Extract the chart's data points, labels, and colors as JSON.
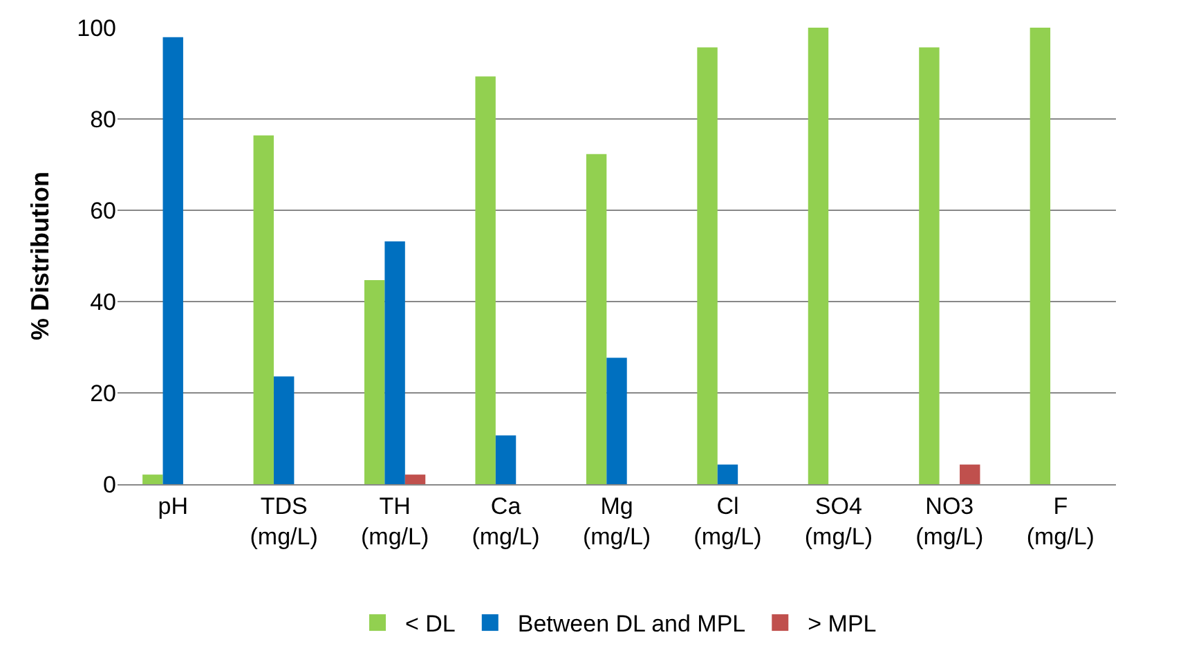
{
  "chart_data": {
    "type": "bar",
    "ylabel": "% Distribution",
    "categories": [
      "pH",
      "TDS\n(mg/L)",
      "TH\n(mg/L)",
      "Ca\n(mg/L)",
      "Mg\n(mg/L)",
      "Cl\n(mg/L)",
      "SO4\n(mg/L)",
      "NO3\n(mg/L)",
      "F\n(mg/L)"
    ],
    "series": [
      {
        "name": "< DL",
        "color": "#92d050",
        "values": [
          2.1,
          76.4,
          44.7,
          89.3,
          72.3,
          95.7,
          100,
          95.7,
          100
        ]
      },
      {
        "name": "Between DL and MPL",
        "color": "#0070c0",
        "values": [
          97.9,
          23.6,
          53.2,
          10.7,
          27.7,
          4.3,
          0,
          0,
          0
        ]
      },
      {
        "name": "> MPL",
        "color": "#c0504d",
        "values": [
          0,
          0,
          2.1,
          0,
          0,
          0,
          0,
          4.3,
          0
        ]
      }
    ],
    "ylim": [
      0,
      100
    ],
    "yticks": [
      0,
      20,
      40,
      60,
      80,
      100
    ],
    "grid": "y",
    "legend": "bottom"
  }
}
